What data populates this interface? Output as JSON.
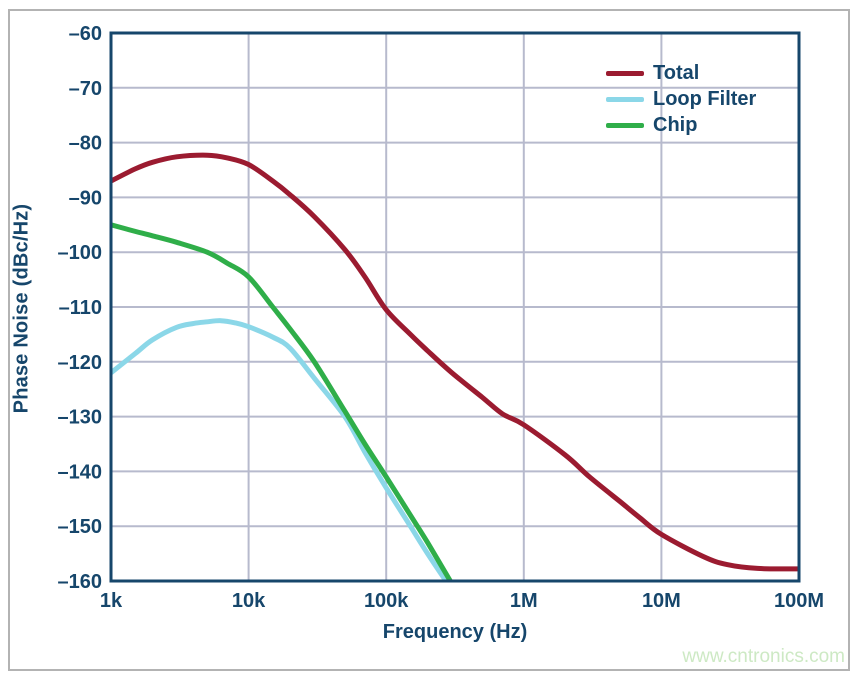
{
  "page": {
    "watermark": "www.cntronics.com",
    "watermark_color": "#cde9c4",
    "background": "#ffffff",
    "frame_color": "#b3b3b3"
  },
  "chart_data": {
    "type": "line",
    "title": "",
    "xlabel": "Frequency (Hz)",
    "ylabel": "Phase Noise (dBc/Hz)",
    "x_scale": "log",
    "x_range_hz": [
      1000,
      100000000
    ],
    "ylim": [
      -160,
      -60
    ],
    "grid": true,
    "legend_position": "top-right-inside",
    "colors": {
      "axis": "#16466b",
      "grid": "#b7bacd",
      "tick_text": "#16466b"
    },
    "x_ticks": [
      {
        "f": 1000,
        "label": "1k"
      },
      {
        "f": 10000,
        "label": "10k"
      },
      {
        "f": 100000,
        "label": "100k"
      },
      {
        "f": 1000000,
        "label": "1M"
      },
      {
        "f": 10000000,
        "label": "10M"
      },
      {
        "f": 100000000,
        "label": "100M"
      }
    ],
    "y_ticks": [
      {
        "v": -60,
        "label": "–60"
      },
      {
        "v": -70,
        "label": "–70"
      },
      {
        "v": -80,
        "label": "–80"
      },
      {
        "v": -90,
        "label": "–90"
      },
      {
        "v": -100,
        "label": "–100"
      },
      {
        "v": -110,
        "label": "–110"
      },
      {
        "v": -120,
        "label": "–120"
      },
      {
        "v": -130,
        "label": "–130"
      },
      {
        "v": -140,
        "label": "–140"
      },
      {
        "v": -150,
        "label": "–150"
      },
      {
        "v": -160,
        "label": "–160"
      }
    ],
    "series": [
      {
        "name": "Total",
        "color": "#9b1b30",
        "points": [
          [
            1000,
            -87
          ],
          [
            1500,
            -84.8
          ],
          [
            2000,
            -83.6
          ],
          [
            3000,
            -82.6
          ],
          [
            5000,
            -82.3
          ],
          [
            7000,
            -82.8
          ],
          [
            10000,
            -84
          ],
          [
            15000,
            -87
          ],
          [
            20000,
            -89.5
          ],
          [
            30000,
            -93.5
          ],
          [
            50000,
            -99.5
          ],
          [
            70000,
            -104.5
          ],
          [
            100000,
            -110.5
          ],
          [
            150000,
            -115
          ],
          [
            200000,
            -118
          ],
          [
            300000,
            -122
          ],
          [
            500000,
            -126.5
          ],
          [
            700000,
            -129.5
          ],
          [
            1000000,
            -131.5
          ],
          [
            2000000,
            -137
          ],
          [
            3000000,
            -141
          ],
          [
            5000000,
            -145.5
          ],
          [
            7000000,
            -148.5
          ],
          [
            10000000,
            -151.5
          ],
          [
            20000000,
            -155.5
          ],
          [
            30000000,
            -157
          ],
          [
            50000000,
            -157.7
          ],
          [
            100000000,
            -157.8
          ]
        ]
      },
      {
        "name": "Loop Filter",
        "color": "#8bd7e8",
        "points": [
          [
            1000,
            -122
          ],
          [
            1500,
            -118.5
          ],
          [
            2000,
            -116
          ],
          [
            3000,
            -113.7
          ],
          [
            4000,
            -113
          ],
          [
            5000,
            -112.7
          ],
          [
            6300,
            -112.5
          ],
          [
            8000,
            -112.9
          ],
          [
            10000,
            -113.6
          ],
          [
            15000,
            -115.5
          ],
          [
            20000,
            -117.5
          ],
          [
            30000,
            -123
          ],
          [
            50000,
            -130
          ],
          [
            70000,
            -136.5
          ],
          [
            100000,
            -143
          ],
          [
            150000,
            -150
          ],
          [
            200000,
            -155
          ],
          [
            280000,
            -160.5
          ]
        ]
      },
      {
        "name": "Chip",
        "color": "#2fae49",
        "points": [
          [
            1000,
            -95
          ],
          [
            1500,
            -96.2
          ],
          [
            2000,
            -97
          ],
          [
            3000,
            -98.2
          ],
          [
            5000,
            -100
          ],
          [
            7000,
            -102
          ],
          [
            10000,
            -104.5
          ],
          [
            15000,
            -110
          ],
          [
            20000,
            -114
          ],
          [
            30000,
            -120
          ],
          [
            50000,
            -129
          ],
          [
            70000,
            -135
          ],
          [
            100000,
            -141
          ],
          [
            150000,
            -148
          ],
          [
            200000,
            -153
          ],
          [
            300000,
            -160.5
          ]
        ]
      }
    ]
  }
}
